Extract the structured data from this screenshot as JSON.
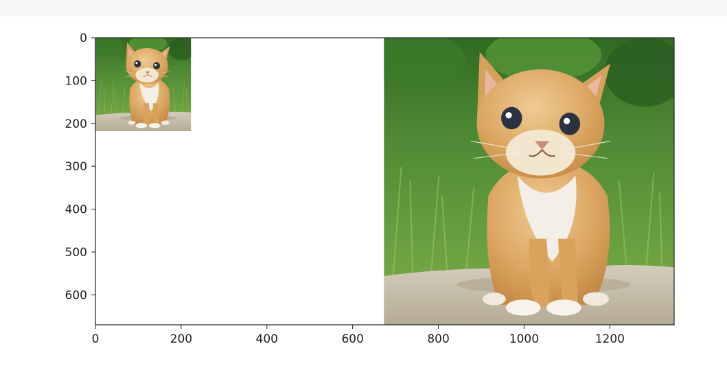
{
  "chart_data": {
    "type": "image",
    "title": "",
    "xlabel": "",
    "ylabel": "",
    "xlim": [
      0,
      1350
    ],
    "ylim": [
      670,
      0
    ],
    "x_ticks": [
      0,
      200,
      400,
      600,
      800,
      1000,
      1200
    ],
    "y_ticks": [
      0,
      100,
      200,
      300,
      400,
      500,
      600
    ],
    "x_tick_labels": [
      "0",
      "200",
      "400",
      "600",
      "800",
      "1000",
      "1200"
    ],
    "y_tick_labels": [
      "0",
      "100",
      "200",
      "300",
      "400",
      "500",
      "600"
    ],
    "grid": false,
    "images": [
      {
        "name": "small-kitten-image",
        "extent": {
          "x0": 0,
          "x1": 223,
          "y0": 0,
          "y1": 218
        }
      },
      {
        "name": "large-kitten-image",
        "extent": {
          "x0": 673,
          "x1": 1350,
          "y0": 0,
          "y1": 670
        }
      }
    ],
    "colors": {
      "axes": "#222222",
      "grass_light": "#7fb04a",
      "grass_dark": "#2f6a22",
      "foliage": "#3d7a2c",
      "stone": "#c9c0ae",
      "fur": "#d9a35e",
      "fur_light": "#ecc890",
      "chest": "#f4efe6",
      "eye": "#2a3342"
    }
  }
}
